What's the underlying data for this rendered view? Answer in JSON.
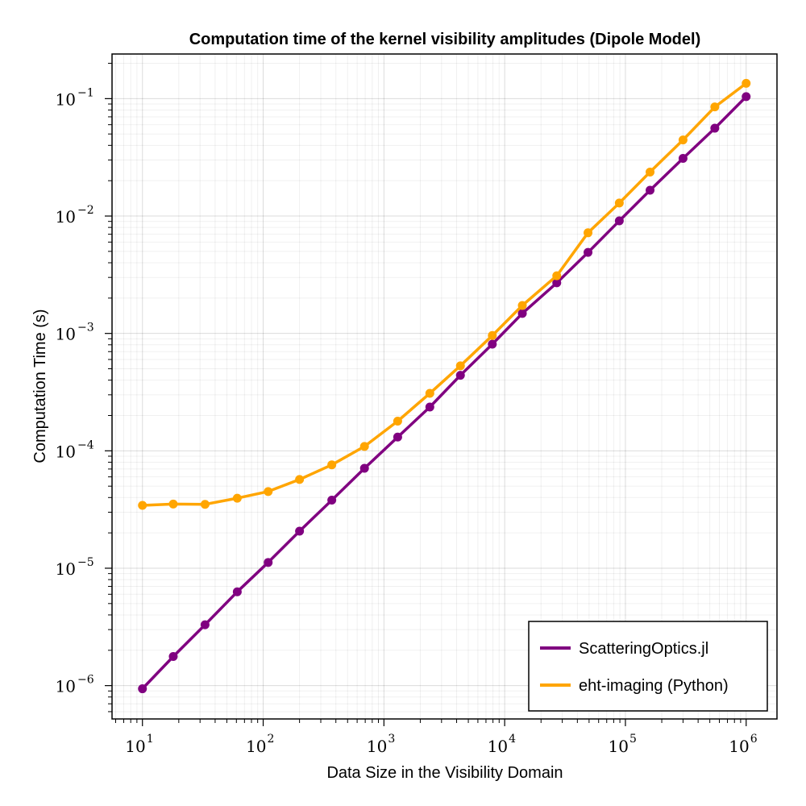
{
  "chart_data": {
    "type": "line",
    "title": "Computation time of the kernel visibility amplitudes (Dipole Model)",
    "xlabel": "Data Size in the Visibility Domain",
    "ylabel": "Computation Time (s)",
    "xscale": "log",
    "yscale": "log",
    "xlim": [
      5.6,
      1800000
    ],
    "ylim": [
      5.2e-07,
      0.24
    ],
    "xticks": [
      {
        "base": "10",
        "exp": "1",
        "value": 10
      },
      {
        "base": "10",
        "exp": "2",
        "value": 100
      },
      {
        "base": "10",
        "exp": "3",
        "value": 1000
      },
      {
        "base": "10",
        "exp": "4",
        "value": 10000
      },
      {
        "base": "10",
        "exp": "5",
        "value": 100000
      },
      {
        "base": "10",
        "exp": "6",
        "value": 1000000
      }
    ],
    "yticks": [
      {
        "base": "10",
        "exp": "−6",
        "value": 1e-06
      },
      {
        "base": "10",
        "exp": "−5",
        "value": 1e-05
      },
      {
        "base": "10",
        "exp": "−4",
        "value": 0.0001
      },
      {
        "base": "10",
        "exp": "−3",
        "value": 0.001
      },
      {
        "base": "10",
        "exp": "−2",
        "value": 0.01
      },
      {
        "base": "10",
        "exp": "−1",
        "value": 0.1
      }
    ],
    "grid": true,
    "legend_position": "bottom-right",
    "x": [
      10,
      18,
      33,
      61,
      110,
      200,
      370,
      690,
      1300,
      2400,
      4300,
      7900,
      14000,
      27000,
      49000,
      89000,
      160000,
      300000,
      550000,
      1000000
    ],
    "series": [
      {
        "name": "ScatteringOptics.jl",
        "color": "#800080",
        "values": [
          9.4e-07,
          1.77e-06,
          3.3e-06,
          6.3e-06,
          1.12e-05,
          2.07e-05,
          3.8e-05,
          7.1e-05,
          0.000131,
          0.000236,
          0.00044,
          0.00081,
          0.00148,
          0.0027,
          0.0049,
          0.0091,
          0.0166,
          0.031,
          0.056,
          0.104
        ]
      },
      {
        "name": "eht-imaging (Python)",
        "color": "#ffa500",
        "values": [
          3.43e-05,
          3.52e-05,
          3.5e-05,
          3.95e-05,
          4.5e-05,
          5.7e-05,
          7.6e-05,
          0.000109,
          0.000179,
          0.000309,
          0.00053,
          0.00096,
          0.00173,
          0.0031,
          0.0072,
          0.0129,
          0.0237,
          0.0445,
          0.085,
          0.135
        ]
      }
    ]
  }
}
